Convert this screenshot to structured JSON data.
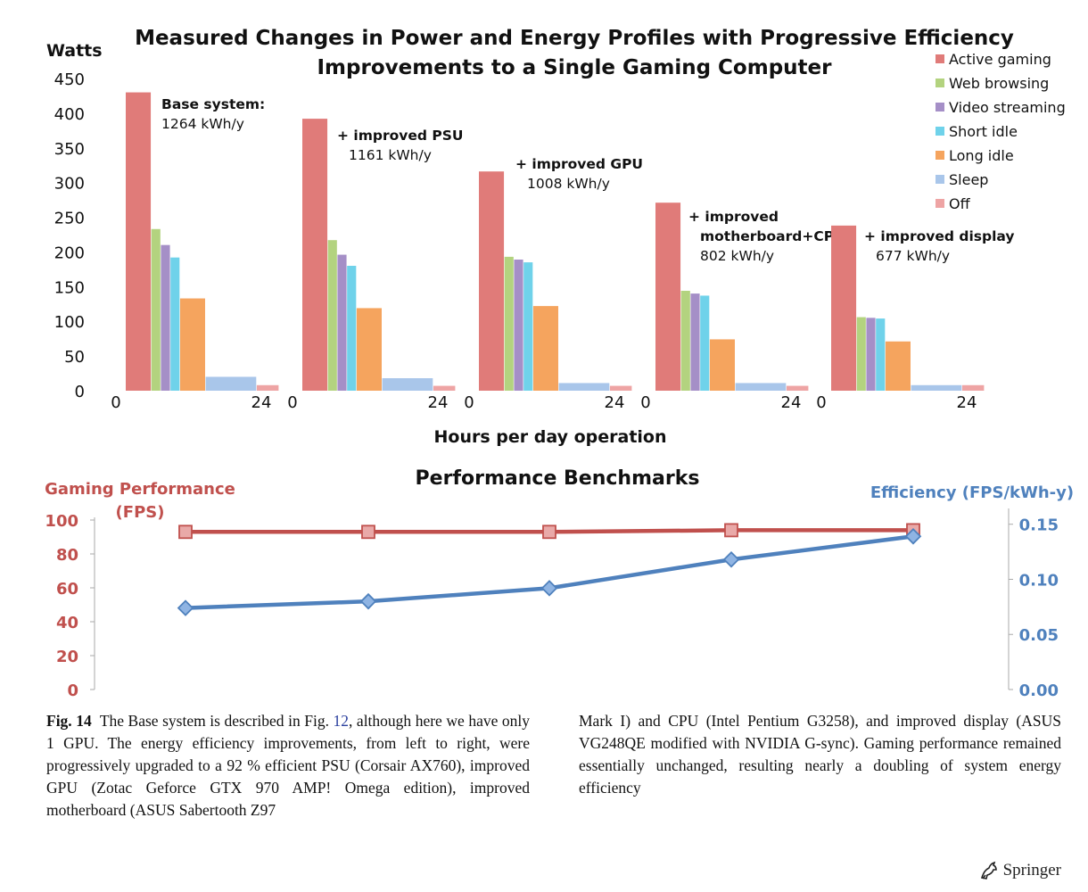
{
  "chart_data": [
    {
      "type": "bar",
      "title_line1": "Measured Changes in Power and Energy Profiles with Progressive Efficiency",
      "title_line2": "Improvements to a Single Gaming Computer",
      "ylabel": "Watts",
      "xlabel": "Hours per day operation",
      "ylim": [
        0,
        450
      ],
      "yticks": [
        "450",
        "400",
        "350",
        "300",
        "250",
        "200",
        "150",
        "100",
        "50",
        "0"
      ],
      "xtick_start": "0",
      "xtick_end": "24",
      "legend_position": "top-right",
      "series": [
        {
          "name": "Active gaming",
          "color": "#e07b79"
        },
        {
          "name": "Web browsing",
          "color": "#b3d37f"
        },
        {
          "name": "Video streaming",
          "color": "#a58fc7"
        },
        {
          "name": "Short idle",
          "color": "#6fd2ea"
        },
        {
          "name": "Long idle",
          "color": "#f5a45e"
        },
        {
          "name": "Sleep",
          "color": "#a9c6ea"
        },
        {
          "name": "Off",
          "color": "#eea4a4"
        }
      ],
      "configurations": [
        {
          "label": "Base system:",
          "energy": "1264 kWh/y",
          "values": [
            430,
            233,
            210,
            192,
            133,
            20,
            8
          ],
          "hours": [
            4,
            1.5,
            1.5,
            1.5,
            4,
            8,
            3.5
          ]
        },
        {
          "label": "+ improved PSU",
          "energy": "1161 kWh/y",
          "values": [
            392,
            217,
            196,
            180,
            119,
            18,
            7
          ],
          "hours": [
            4,
            1.5,
            1.5,
            1.5,
            4,
            8,
            3.5
          ]
        },
        {
          "label": "+ improved GPU",
          "energy": "1008 kWh/y",
          "values": [
            316,
            193,
            189,
            185,
            122,
            11,
            7
          ],
          "hours": [
            4,
            1.5,
            1.5,
            1.5,
            4,
            8,
            3.5
          ]
        },
        {
          "label": "+ improved",
          "label_line2": "motherboard+CPU",
          "energy": "802 kWh/y",
          "values": [
            271,
            144,
            140,
            137,
            74,
            11,
            7
          ],
          "hours": [
            4,
            1.5,
            1.5,
            1.5,
            4,
            8,
            3.5
          ]
        },
        {
          "label": "+ improved display",
          "energy": "677 kWh/y",
          "values": [
            238,
            106,
            105,
            104,
            71,
            8,
            8
          ],
          "hours": [
            4,
            1.5,
            1.5,
            1.5,
            4,
            8,
            3.5
          ]
        }
      ]
    },
    {
      "type": "line",
      "title": "Performance Benchmarks",
      "y_left_label_line1": "Gaming Performance",
      "y_left_label_line2": "(FPS)",
      "y_right_label": "Efficiency (FPS/kWh-y)",
      "y_left_lim": [
        0,
        100
      ],
      "y_right_lim": [
        0,
        0.17
      ],
      "y_left_ticks": [
        "100",
        "80",
        "60",
        "40",
        "20",
        "0"
      ],
      "y_right_ticks": [
        "0.15",
        "0.10",
        "0.05",
        "0.00"
      ],
      "series": [
        {
          "name": "Gaming Performance (FPS)",
          "axis": "left",
          "color": "#c0504d",
          "marker": "square",
          "values": [
            93,
            93,
            93,
            94,
            94
          ]
        },
        {
          "name": "Efficiency (FPS/kWh-y)",
          "axis": "right",
          "color": "#4f81bd",
          "marker": "diamond",
          "values": [
            0.074,
            0.08,
            0.092,
            0.118,
            0.139
          ]
        }
      ]
    }
  ],
  "caption": {
    "fig_label": "Fig. 14",
    "col1_part1": "The Base system is described in Fig.",
    "col1_ref": "12",
    "col1_part2": ", although here we have only 1 GPU. The energy efficiency improvements, from left to right, were progressively upgraded to a 92 % efficient PSU (Corsair AX760), improved GPU (Zotac Geforce GTX 970 AMP! Omega edition), improved motherboard (ASUS Sabertooth Z97",
    "col2": "Mark I) and CPU (Intel Pentium G3258), and improved display (ASUS VG248QE modified with NVIDIA G-sync). Gaming performance remained essentially unchanged, resulting nearly a doubling of system energy efficiency"
  },
  "publisher": "Springer",
  "publisher_icon": "springer-horse-icon"
}
